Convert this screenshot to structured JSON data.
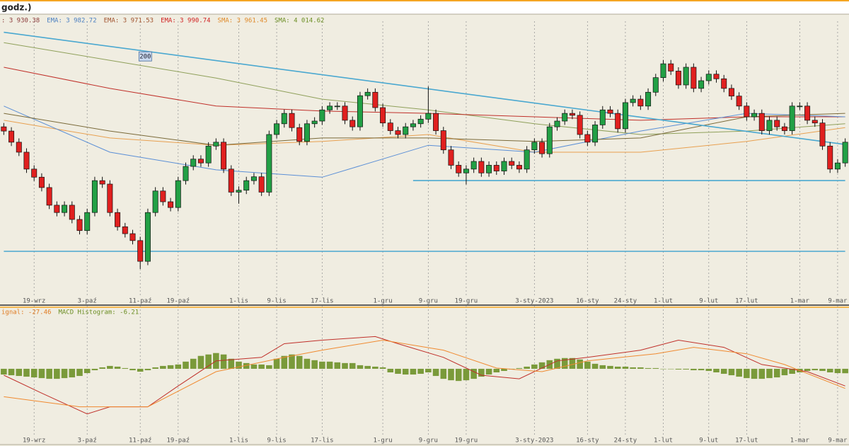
{
  "header": {
    "title": "godz.)"
  },
  "chart_data": [
    {
      "type": "candlestick",
      "indicators": [
        {
          "text": ": 3 930.38",
          "color": "#8b3a3a"
        },
        {
          "text": "EMA: 3 982.72",
          "color": "#4a7fc1"
        },
        {
          "text": "EMA: 3 971.53",
          "color": "#a0522d"
        },
        {
          "text": "EMA: 3 990.74",
          "color": "#d02020"
        },
        {
          "text": "SMA: 3 961.45",
          "color": "#e08a2a"
        },
        {
          "text": "SMA: 4 014.62",
          "color": "#6b8e23"
        }
      ],
      "annotation": "200",
      "up_color": "#22a045",
      "down_color": "#e0201f",
      "ylim": [
        3500,
        4200
      ],
      "open": [
        3940,
        3929,
        3900,
        3874,
        3830,
        3809,
        3782,
        3736,
        3717,
        3736,
        3699,
        3670,
        3717,
        3800,
        3791,
        3717,
        3680,
        3662,
        3644,
        3590,
        3717,
        3773,
        3745,
        3730,
        3800,
        3837,
        3856,
        3846,
        3890,
        3900,
        3830,
        3770,
        3775,
        3800,
        3810,
        3770,
        3920,
        3948,
        3975,
        3938,
        3902,
        3948,
        3955,
        3984,
        3994,
        3994,
        3957,
        3940,
        4021,
        4030,
        3990,
        3950,
        3930,
        3920,
        3940,
        3948,
        3960,
        3975,
        3930,
        3880,
        3840,
        3820,
        3830,
        3850,
        3820,
        3840,
        3825,
        3850,
        3840,
        3830,
        3880,
        3900,
        3870,
        3940,
        3955,
        3975,
        3970,
        3920,
        3900,
        3945,
        3984,
        3975,
        3935,
        4003,
        4012,
        3994,
        4030,
        4068,
        4104,
        4085,
        4049,
        4095,
        4040,
        4060,
        4077,
        4065,
        4040,
        4020,
        3994,
        3966,
        3975,
        3930,
        3957,
        3940,
        3930,
        3994,
        3994,
        3957,
        3950,
        3890,
        3830,
        3846
      ],
      "high": [
        3950,
        3939,
        3910,
        3884,
        3840,
        3819,
        3792,
        3746,
        3746,
        3746,
        3709,
        3727,
        3810,
        3810,
        3801,
        3727,
        3690,
        3672,
        3654,
        3727,
        3783,
        3783,
        3755,
        3810,
        3847,
        3866,
        3866,
        3900,
        3910,
        3910,
        3840,
        3785,
        3810,
        3820,
        3820,
        3930,
        3958,
        3985,
        3985,
        3948,
        3958,
        3965,
        3994,
        4004,
        4004,
        4004,
        3967,
        4031,
        4040,
        4040,
        4000,
        3960,
        3940,
        3950,
        3958,
        3970,
        4045,
        3985,
        3940,
        3890,
        3850,
        3840,
        3860,
        3860,
        3850,
        3850,
        3860,
        3860,
        3850,
        3890,
        3910,
        3910,
        3950,
        3965,
        3985,
        3985,
        3980,
        3930,
        3955,
        3994,
        3994,
        3985,
        4013,
        4022,
        4022,
        4040,
        4078,
        4114,
        4114,
        4095,
        4105,
        4105,
        4070,
        4087,
        4087,
        4075,
        4050,
        4030,
        4004,
        3985,
        3985,
        3967,
        3967,
        3950,
        4004,
        4004,
        4004,
        3967,
        3960,
        3900,
        3856,
        3910
      ],
      "low": [
        3919,
        3890,
        3864,
        3820,
        3799,
        3772,
        3726,
        3707,
        3707,
        3689,
        3660,
        3660,
        3707,
        3781,
        3707,
        3670,
        3652,
        3634,
        3570,
        3580,
        3707,
        3735,
        3720,
        3720,
        3790,
        3827,
        3836,
        3836,
        3880,
        3820,
        3760,
        3740,
        3765,
        3790,
        3760,
        3760,
        3910,
        3938,
        3928,
        3892,
        3892,
        3938,
        3945,
        3974,
        3984,
        3947,
        3930,
        3930,
        4011,
        3980,
        3940,
        3920,
        3910,
        3910,
        3930,
        3938,
        3950,
        3920,
        3870,
        3830,
        3810,
        3790,
        3820,
        3810,
        3810,
        3815,
        3815,
        3830,
        3820,
        3820,
        3870,
        3860,
        3860,
        3930,
        3945,
        3960,
        3910,
        3890,
        3890,
        3935,
        3965,
        3925,
        3925,
        3993,
        3984,
        3984,
        4020,
        4058,
        4075,
        4039,
        4039,
        4030,
        4030,
        4050,
        4055,
        4030,
        4010,
        3984,
        3956,
        3956,
        3920,
        3920,
        3930,
        3920,
        3920,
        3984,
        3947,
        3940,
        3880,
        3820,
        3820,
        3836
      ],
      "close": [
        3929,
        3900,
        3874,
        3830,
        3809,
        3782,
        3736,
        3717,
        3736,
        3699,
        3670,
        3717,
        3800,
        3791,
        3717,
        3680,
        3662,
        3644,
        3590,
        3717,
        3773,
        3745,
        3730,
        3800,
        3837,
        3856,
        3846,
        3890,
        3900,
        3830,
        3770,
        3775,
        3800,
        3810,
        3770,
        3920,
        3948,
        3975,
        3938,
        3902,
        3948,
        3955,
        3984,
        3994,
        3994,
        3957,
        3940,
        4021,
        4030,
        3990,
        3950,
        3930,
        3920,
        3940,
        3948,
        3960,
        3975,
        3930,
        3880,
        3840,
        3820,
        3830,
        3850,
        3820,
        3840,
        3825,
        3850,
        3840,
        3830,
        3880,
        3900,
        3870,
        3940,
        3955,
        3975,
        3970,
        3920,
        3900,
        3945,
        3984,
        3975,
        3935,
        4003,
        4012,
        3994,
        4030,
        4068,
        4104,
        4085,
        4049,
        4095,
        4040,
        4060,
        4077,
        4065,
        4040,
        4020,
        3994,
        3966,
        3975,
        3930,
        3957,
        3940,
        3930,
        3994,
        3994,
        3957,
        3950,
        3890,
        3830,
        3846,
        3900
      ],
      "moving_averages": [
        {
          "color": "#8fa05a",
          "x": [
            0,
            14,
            28,
            42,
            56,
            70,
            84,
            98,
            111
          ],
          "values": [
            4159,
            4113,
            4067,
            4012,
            3984,
            3948,
            3920,
            3929,
            3948
          ]
        },
        {
          "color": "#c0302a",
          "x": [
            0,
            14,
            28,
            42,
            56,
            70,
            84,
            98,
            111
          ],
          "values": [
            4095,
            4040,
            3994,
            3981,
            3975,
            3966,
            3957,
            3966,
            3966
          ]
        },
        {
          "color": "#e8a050",
          "x": [
            0,
            14,
            28,
            42,
            56,
            70,
            84,
            98,
            111
          ],
          "values": [
            3957,
            3911,
            3892,
            3902,
            3920,
            3874,
            3874,
            3902,
            3938
          ]
        },
        {
          "color": "#5b8fd6",
          "x": [
            0,
            14,
            28,
            42,
            56,
            70,
            84,
            98,
            111
          ],
          "values": [
            3994,
            3874,
            3828,
            3809,
            3892,
            3874,
            3929,
            3975,
            3966
          ]
        },
        {
          "color": "#7a6a3a",
          "x": [
            0,
            14,
            28,
            42,
            56,
            70,
            84,
            98,
            111
          ],
          "values": [
            3975,
            3929,
            3892,
            3911,
            3911,
            3902,
            3911,
            3966,
            3975
          ]
        }
      ],
      "trendlines": [
        {
          "color": "#4aa8d0",
          "x": [
            0,
            111
          ],
          "values": [
            4186,
            3894
          ]
        },
        {
          "color": "#4aa8d0",
          "x": [
            54,
            111
          ],
          "values": [
            3800,
            3800
          ]
        },
        {
          "color": "#4aa8d0",
          "x": [
            0,
            111
          ],
          "values": [
            3616,
            3616
          ]
        }
      ],
      "xticks": [
        {
          "value": 4,
          "label": "19-wrz"
        },
        {
          "value": 11,
          "label": "3-paź"
        },
        {
          "value": 18,
          "label": "11-paź"
        },
        {
          "value": 23,
          "label": "19-paź"
        },
        {
          "value": 31,
          "label": "1-lis"
        },
        {
          "value": 36,
          "label": "9-lis"
        },
        {
          "value": 42,
          "label": "17-lis"
        },
        {
          "value": 50,
          "label": "1-gru"
        },
        {
          "value": 56,
          "label": "9-gru"
        },
        {
          "value": 61,
          "label": "19-gru"
        },
        {
          "value": 70,
          "label": "3-sty-2023"
        },
        {
          "value": 77,
          "label": "16-sty"
        },
        {
          "value": 82,
          "label": "24-sty"
        },
        {
          "value": 87,
          "label": "1-lut"
        },
        {
          "value": 93,
          "label": "9-lut"
        },
        {
          "value": 98,
          "label": "17-lut"
        },
        {
          "value": 105,
          "label": "1-mar"
        },
        {
          "value": 110,
          "label": "9-mar"
        }
      ]
    },
    {
      "type": "macd",
      "indicators": [
        {
          "text": "ignal: -27.46",
          "color": "#e07a20"
        },
        {
          "text": "MACD Histogram: -6.21",
          "color": "#6b8e23"
        }
      ],
      "ylim": [
        -90,
        80
      ],
      "histogram": {
        "color": "#7a9a3a",
        "values": [
          -8,
          -9,
          -10,
          -11,
          -12,
          -13,
          -14,
          -14,
          -13,
          -12,
          -10,
          -6,
          -2,
          2,
          4,
          3,
          1,
          -2,
          -4,
          -2,
          2,
          4,
          5,
          6,
          10,
          14,
          18,
          20,
          22,
          20,
          14,
          10,
          8,
          6,
          6,
          5,
          14,
          18,
          20,
          18,
          14,
          12,
          10,
          10,
          9,
          8,
          8,
          5,
          4,
          3,
          2,
          -5,
          -7,
          -8,
          -8,
          -7,
          -5,
          -10,
          -14,
          -16,
          -17,
          -16,
          -14,
          -11,
          -8,
          -5,
          -3,
          -1,
          1,
          3,
          6,
          9,
          12,
          14,
          15,
          15,
          13,
          10,
          7,
          5,
          4,
          3,
          3,
          2,
          2,
          1,
          1,
          0,
          0,
          -1,
          -1,
          -2,
          -2,
          -3,
          -5,
          -7,
          -9,
          -11,
          -13,
          -14,
          -14,
          -13,
          -12,
          -9,
          -7,
          -5,
          -3,
          -2,
          -3,
          -5,
          -6,
          -6.21
        ]
      },
      "series": [
        {
          "color": "#c0302a",
          "x": [
            0,
            5,
            11,
            14,
            19,
            23,
            28,
            34,
            37,
            42,
            49,
            52,
            58,
            63,
            68,
            73,
            77,
            84,
            89,
            95,
            100,
            106,
            111
          ],
          "values": [
            -9,
            -34,
            -63,
            -53,
            -53,
            -24,
            11,
            16,
            35,
            40,
            45,
            35,
            16,
            -9,
            -14,
            11,
            16,
            26,
            40,
            30,
            6,
            -4,
            -24
          ]
        },
        {
          "color": "#f08a30",
          "x": [
            0,
            10,
            19,
            28,
            37,
            42,
            50,
            58,
            65,
            71,
            77,
            86,
            91,
            98,
            103,
            111
          ],
          "values": [
            -39,
            -53,
            -53,
            -4,
            16,
            26,
            40,
            26,
            1,
            -4,
            11,
            21,
            30,
            21,
            6,
            -27.46
          ]
        }
      ],
      "xticks": [
        {
          "value": 4,
          "label": "19-wrz"
        },
        {
          "value": 11,
          "label": "3-paź"
        },
        {
          "value": 18,
          "label": "11-paź"
        },
        {
          "value": 23,
          "label": "19-paź"
        },
        {
          "value": 31,
          "label": "1-lis"
        },
        {
          "value": 36,
          "label": "9-lis"
        },
        {
          "value": 42,
          "label": "17-lis"
        },
        {
          "value": 50,
          "label": "1-gru"
        },
        {
          "value": 56,
          "label": "9-gru"
        },
        {
          "value": 61,
          "label": "19-gru"
        },
        {
          "value": 70,
          "label": "3-sty-2023"
        },
        {
          "value": 77,
          "label": "16-sty"
        },
        {
          "value": 82,
          "label": "24-sty"
        },
        {
          "value": 87,
          "label": "1-lut"
        },
        {
          "value": 93,
          "label": "9-lut"
        },
        {
          "value": 98,
          "label": "17-lut"
        },
        {
          "value": 105,
          "label": "1-mar"
        },
        {
          "value": 110,
          "label": "9-mar"
        }
      ]
    }
  ]
}
